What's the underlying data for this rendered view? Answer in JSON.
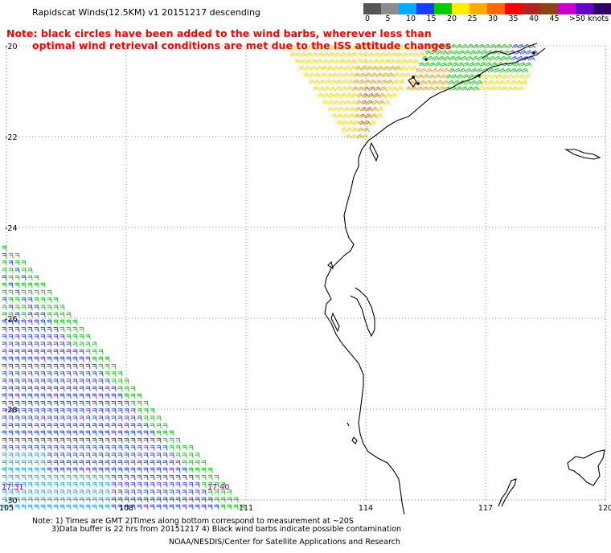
{
  "title": "Rapidscat Winds(12.5KM) v1 20151217 descending",
  "note": {
    "line1": "Note: black circles have been added to the wind barbs, wherever less than",
    "line2": "optimal wind retrieval conditions are met due to the ISS attitude changes",
    "color": "#ff0000"
  },
  "legend": {
    "units_label": ">50 knots",
    "ticks": [
      "0",
      "5",
      "10",
      "15",
      "20",
      "25",
      "30",
      "35",
      "40",
      "45"
    ],
    "colors": [
      "#555555",
      "#8c8c8c",
      "#00aaff",
      "#1a3cff",
      "#00cc00",
      "#ffee00",
      "#ffaa00",
      "#ff6600",
      "#ff0000",
      "#b22222",
      "#8b4513",
      "#cc00cc",
      "#6600cc",
      "#330066"
    ]
  },
  "axes": {
    "lat_labels": [
      "-20",
      "-22",
      "-24",
      "-26",
      "-28",
      "-30"
    ],
    "lon_labels": [
      "105",
      "108",
      "111",
      "114",
      "117",
      "120"
    ]
  },
  "time_labels": [
    "17:31",
    "17:40"
  ],
  "footer": {
    "line1": "Note: 1) Times are GMT 2)Times along bottom correspond to measurement at ~20S",
    "line2": "3)Data buffer is 22 hrs from 20151217 4) Black wind barbs indicate possible contamination",
    "credit": "NOAA/NESDIS/Center for Satellite Applications and Research"
  },
  "colors": {
    "grid": "#888888",
    "coast": "#000000",
    "time_label": "#8b008b"
  }
}
